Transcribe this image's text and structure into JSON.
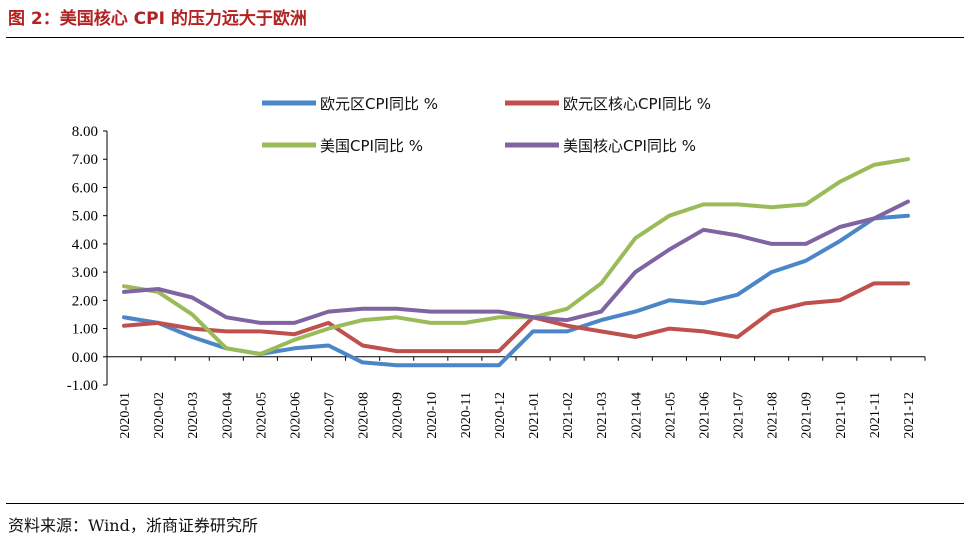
{
  "figure": {
    "title": "图 2：美国核心 CPI 的压力远大于欧洲",
    "source": "资料来源：Wind，浙商证券研究所"
  },
  "chart_data": {
    "type": "line",
    "title": "",
    "xlabel": "",
    "ylabel": "",
    "ylim": [
      -1,
      8
    ],
    "yticks": [
      "8.00",
      "7.00",
      "6.00",
      "5.00",
      "4.00",
      "3.00",
      "2.00",
      "1.00",
      "0.00",
      "-1.00"
    ],
    "grid": false,
    "legend_position": "top",
    "categories": [
      "2020-01",
      "2020-02",
      "2020-03",
      "2020-04",
      "2020-05",
      "2020-06",
      "2020-07",
      "2020-08",
      "2020-09",
      "2020-10",
      "2020-11",
      "2020-12",
      "2021-01",
      "2021-02",
      "2021-03",
      "2021-04",
      "2021-05",
      "2021-06",
      "2021-07",
      "2021-08",
      "2021-09",
      "2021-10",
      "2021-11",
      "2021-12"
    ],
    "series": [
      {
        "name": "欧元区CPI同比 %",
        "color": "#4a86c8",
        "values": [
          1.4,
          1.2,
          0.7,
          0.3,
          0.1,
          0.3,
          0.4,
          -0.2,
          -0.3,
          -0.3,
          -0.3,
          -0.3,
          0.9,
          0.9,
          1.3,
          1.6,
          2.0,
          1.9,
          2.2,
          3.0,
          3.4,
          4.1,
          4.9,
          5.0
        ]
      },
      {
        "name": "欧元区核心CPI同比 %",
        "color": "#c0504d",
        "values": [
          1.1,
          1.2,
          1.0,
          0.9,
          0.9,
          0.8,
          1.2,
          0.4,
          0.2,
          0.2,
          0.2,
          0.2,
          1.4,
          1.1,
          0.9,
          0.7,
          1.0,
          0.9,
          0.7,
          1.6,
          1.9,
          2.0,
          2.6,
          2.6
        ]
      },
      {
        "name": "美国CPI同比 %",
        "color": "#9bbb59",
        "values": [
          2.5,
          2.3,
          1.5,
          0.3,
          0.1,
          0.6,
          1.0,
          1.3,
          1.4,
          1.2,
          1.2,
          1.4,
          1.4,
          1.7,
          2.6,
          4.2,
          5.0,
          5.4,
          5.4,
          5.3,
          5.4,
          6.2,
          6.8,
          7.0
        ]
      },
      {
        "name": "美国核心CPI同比 %",
        "color": "#8064a2",
        "values": [
          2.3,
          2.4,
          2.1,
          1.4,
          1.2,
          1.2,
          1.6,
          1.7,
          1.7,
          1.6,
          1.6,
          1.6,
          1.4,
          1.3,
          1.6,
          3.0,
          3.8,
          4.5,
          4.3,
          4.0,
          4.0,
          4.6,
          4.9,
          5.5
        ]
      }
    ]
  }
}
